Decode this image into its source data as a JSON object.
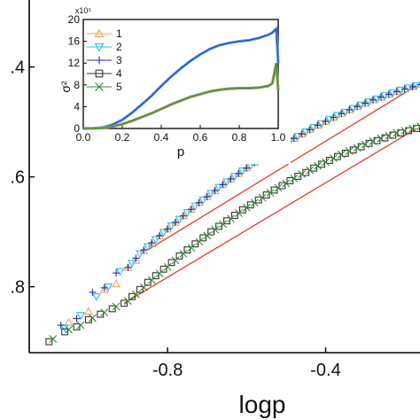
{
  "chart_data": [
    {
      "type": "scatter",
      "xlabel": "logp",
      "ylabel": "",
      "xlim": [
        -1.15,
        -0.15
      ],
      "ylim": [
        -1.92,
        -1.27
      ],
      "xticks": [
        -0.8,
        -0.4
      ],
      "xtick_labels": [
        "-0.8",
        "-0.4"
      ],
      "yticks": [
        -1.4,
        -1.6,
        -1.8
      ],
      "ytick_labels": [
        ".4",
        ".6",
        ".8"
      ],
      "series": [
        {
          "name": "1",
          "marker": "triangle-up",
          "color": "#f4a24c",
          "x": [
            -1.05,
            -1.0,
            -0.96,
            -0.93,
            -0.9,
            -0.88,
            -0.86,
            -0.84,
            -0.82,
            -0.8,
            -0.78,
            -0.76,
            -0.74,
            -0.72,
            -0.7,
            -0.68,
            -0.66,
            -0.64,
            -0.62,
            -0.6,
            -0.58,
            -0.56,
            -0.54,
            -0.52,
            -0.5,
            -0.48,
            -0.46,
            -0.44,
            -0.42,
            -0.4,
            -0.38,
            -0.36,
            -0.34,
            -0.32,
            -0.3,
            -0.28,
            -0.26,
            -0.24,
            -0.22,
            -0.2,
            -0.18,
            -0.16
          ],
          "y": [
            -1.865,
            -1.845,
            -1.805,
            -1.795,
            -1.765,
            -1.752,
            -1.735,
            -1.722,
            -1.708,
            -1.695,
            -1.683,
            -1.671,
            -1.659,
            -1.647,
            -1.636,
            -1.625,
            -1.614,
            -1.604,
            -1.594,
            -1.584,
            -1.574,
            -1.565,
            -1.556,
            -1.547,
            -1.538,
            -1.53,
            -1.522,
            -1.514,
            -1.506,
            -1.499,
            -1.492,
            -1.485,
            -1.478,
            -1.472,
            -1.466,
            -1.46,
            -1.455,
            -1.45,
            -1.445,
            -1.44,
            -1.436,
            -1.432
          ]
        },
        {
          "name": "2",
          "marker": "triangle-down",
          "color": "#22c4e8",
          "x": [
            -1.06,
            -1.02,
            -0.98,
            -0.95,
            -0.92,
            -0.89,
            -0.87,
            -0.85,
            -0.83,
            -0.81,
            -0.79,
            -0.77,
            -0.75,
            -0.73,
            -0.71,
            -0.69,
            -0.67,
            -0.65,
            -0.63,
            -0.61,
            -0.59,
            -0.57,
            -0.55,
            -0.53,
            -0.51,
            -0.49,
            -0.47,
            -0.45,
            -0.43,
            -0.41,
            -0.39,
            -0.37,
            -0.35,
            -0.33,
            -0.31,
            -0.29,
            -0.27,
            -0.25,
            -0.23,
            -0.21,
            -0.19,
            -0.17
          ],
          "y": [
            -1.875,
            -1.852,
            -1.818,
            -1.8,
            -1.772,
            -1.757,
            -1.74,
            -1.727,
            -1.714,
            -1.701,
            -1.689,
            -1.677,
            -1.665,
            -1.653,
            -1.642,
            -1.63,
            -1.619,
            -1.609,
            -1.599,
            -1.589,
            -1.579,
            -1.57,
            -1.561,
            -1.552,
            -1.543,
            -1.534,
            -1.526,
            -1.518,
            -1.51,
            -1.503,
            -1.495,
            -1.488,
            -1.482,
            -1.475,
            -1.469,
            -1.463,
            -1.458,
            -1.452,
            -1.447,
            -1.442,
            -1.438,
            -1.434
          ]
        },
        {
          "name": "3",
          "marker": "plus",
          "color": "#2a2ab8",
          "x": [
            -1.07,
            -1.03,
            -0.99,
            -0.96,
            -0.93,
            -0.9,
            -0.88,
            -0.86,
            -0.84,
            -0.82,
            -0.8,
            -0.78,
            -0.76,
            -0.74,
            -0.72,
            -0.7,
            -0.68,
            -0.66,
            -0.64,
            -0.62,
            -0.6,
            -0.58,
            -0.56,
            -0.54,
            -0.52,
            -0.5,
            -0.48,
            -0.46,
            -0.44,
            -0.42,
            -0.4,
            -0.38,
            -0.36,
            -0.34,
            -0.32,
            -0.3,
            -0.28,
            -0.26,
            -0.24,
            -0.22,
            -0.2,
            -0.18,
            -0.16
          ],
          "y": [
            -1.87,
            -1.858,
            -1.81,
            -1.802,
            -1.775,
            -1.765,
            -1.748,
            -1.733,
            -1.72,
            -1.707,
            -1.695,
            -1.683,
            -1.671,
            -1.659,
            -1.647,
            -1.636,
            -1.625,
            -1.614,
            -1.604,
            -1.594,
            -1.584,
            -1.574,
            -1.565,
            -1.556,
            -1.547,
            -1.538,
            -1.53,
            -1.522,
            -1.514,
            -1.506,
            -1.499,
            -1.492,
            -1.485,
            -1.478,
            -1.472,
            -1.466,
            -1.46,
            -1.455,
            -1.45,
            -1.445,
            -1.44,
            -1.436,
            -1.432
          ]
        },
        {
          "name": "4",
          "marker": "square",
          "color": "#333333",
          "x": [
            -1.1,
            -1.06,
            -1.03,
            -1.0,
            -0.97,
            -0.94,
            -0.91,
            -0.89,
            -0.87,
            -0.85,
            -0.83,
            -0.81,
            -0.79,
            -0.77,
            -0.75,
            -0.73,
            -0.71,
            -0.69,
            -0.67,
            -0.65,
            -0.63,
            -0.61,
            -0.59,
            -0.57,
            -0.55,
            -0.53,
            -0.51,
            -0.49,
            -0.47,
            -0.45,
            -0.43,
            -0.41,
            -0.39,
            -0.37,
            -0.35,
            -0.33,
            -0.31,
            -0.29,
            -0.27,
            -0.25,
            -0.23,
            -0.21,
            -0.19,
            -0.17
          ],
          "y": [
            -1.9,
            -1.882,
            -1.873,
            -1.86,
            -1.85,
            -1.84,
            -1.83,
            -1.818,
            -1.805,
            -1.792,
            -1.78,
            -1.768,
            -1.756,
            -1.744,
            -1.733,
            -1.722,
            -1.711,
            -1.7,
            -1.69,
            -1.68,
            -1.67,
            -1.66,
            -1.651,
            -1.642,
            -1.633,
            -1.624,
            -1.616,
            -1.607,
            -1.599,
            -1.592,
            -1.584,
            -1.577,
            -1.57,
            -1.563,
            -1.557,
            -1.551,
            -1.545,
            -1.539,
            -1.534,
            -1.529,
            -1.524,
            -1.52,
            -1.516,
            -1.512
          ]
        },
        {
          "name": "5",
          "marker": "x",
          "color": "#2e8b2e",
          "x": [
            -1.09,
            -1.05,
            -1.02,
            -0.99,
            -0.96,
            -0.93,
            -0.9,
            -0.88,
            -0.86,
            -0.84,
            -0.82,
            -0.8,
            -0.78,
            -0.76,
            -0.74,
            -0.72,
            -0.7,
            -0.68,
            -0.66,
            -0.64,
            -0.62,
            -0.6,
            -0.58,
            -0.56,
            -0.54,
            -0.52,
            -0.5,
            -0.48,
            -0.46,
            -0.44,
            -0.42,
            -0.4,
            -0.38,
            -0.36,
            -0.34,
            -0.32,
            -0.3,
            -0.28,
            -0.26,
            -0.24,
            -0.22,
            -0.2,
            -0.18,
            -0.16
          ],
          "y": [
            -1.895,
            -1.878,
            -1.87,
            -1.857,
            -1.847,
            -1.836,
            -1.826,
            -1.814,
            -1.801,
            -1.788,
            -1.776,
            -1.764,
            -1.752,
            -1.74,
            -1.729,
            -1.718,
            -1.707,
            -1.696,
            -1.686,
            -1.676,
            -1.666,
            -1.656,
            -1.647,
            -1.638,
            -1.629,
            -1.62,
            -1.612,
            -1.603,
            -1.595,
            -1.588,
            -1.58,
            -1.573,
            -1.566,
            -1.559,
            -1.553,
            -1.547,
            -1.541,
            -1.535,
            -1.53,
            -1.525,
            -1.52,
            -1.516,
            -1.512,
            -1.508
          ]
        }
      ],
      "fit_lines": [
        {
          "color": "#e8382a",
          "x": [
            -0.85,
            -0.17
          ],
          "y": [
            -1.733,
            -1.434
          ]
        },
        {
          "color": "#e8382a",
          "x": [
            -0.91,
            -0.17
          ],
          "y": [
            -1.83,
            -1.512
          ]
        }
      ]
    },
    {
      "type": "line",
      "inset": true,
      "xlabel": "p",
      "ylabel": "σ²",
      "y_multiplier": "x10⁵",
      "xlim": [
        0.0,
        1.0
      ],
      "ylim": [
        0,
        20
      ],
      "xticks": [
        0.0,
        0.2,
        0.4,
        0.6,
        0.8,
        1.0
      ],
      "xtick_labels": [
        "0.0",
        "0.2",
        "0.4",
        "0.6",
        "0.8",
        "1.0"
      ],
      "yticks": [
        0,
        4,
        8,
        12,
        16,
        20
      ],
      "ytick_labels": [
        "0",
        "4",
        "8",
        "12",
        "16",
        "20"
      ],
      "legend_position": "top-left",
      "series": [
        {
          "name": "1",
          "marker": "triangle-up",
          "color": "#f4a24c",
          "group": "upper"
        },
        {
          "name": "2",
          "marker": "triangle-down",
          "color": "#22c4e8",
          "group": "upper"
        },
        {
          "name": "3",
          "marker": "plus",
          "color": "#2a2ab8",
          "group": "upper"
        },
        {
          "name": "4",
          "marker": "square",
          "color": "#333333",
          "group": "lower"
        },
        {
          "name": "5",
          "marker": "x",
          "color": "#2e8b2e",
          "group": "lower"
        }
      ],
      "curves": {
        "upper": {
          "x": [
            0,
            0.05,
            0.1,
            0.15,
            0.2,
            0.25,
            0.3,
            0.35,
            0.4,
            0.45,
            0.5,
            0.55,
            0.6,
            0.65,
            0.7,
            0.75,
            0.8,
            0.85,
            0.9,
            0.95,
            0.97,
            0.99,
            1.0
          ],
          "y": [
            0,
            0.02,
            0.2,
            0.7,
            1.6,
            2.9,
            4.4,
            6.0,
            7.8,
            9.5,
            11.0,
            12.4,
            13.6,
            14.6,
            15.3,
            15.7,
            16.0,
            16.2,
            16.6,
            17.2,
            17.6,
            18.3,
            12.0
          ]
        },
        "lower": {
          "x": [
            0,
            0.05,
            0.1,
            0.15,
            0.2,
            0.25,
            0.3,
            0.35,
            0.4,
            0.45,
            0.5,
            0.55,
            0.6,
            0.65,
            0.7,
            0.75,
            0.8,
            0.85,
            0.9,
            0.95,
            0.97,
            0.99,
            1.0
          ],
          "y": [
            0,
            0.01,
            0.1,
            0.35,
            0.8,
            1.4,
            2.1,
            2.8,
            3.6,
            4.4,
            5.1,
            5.8,
            6.3,
            6.8,
            7.1,
            7.3,
            7.4,
            7.4,
            7.5,
            7.8,
            8.3,
            12.0,
            7.0
          ]
        }
      }
    }
  ]
}
